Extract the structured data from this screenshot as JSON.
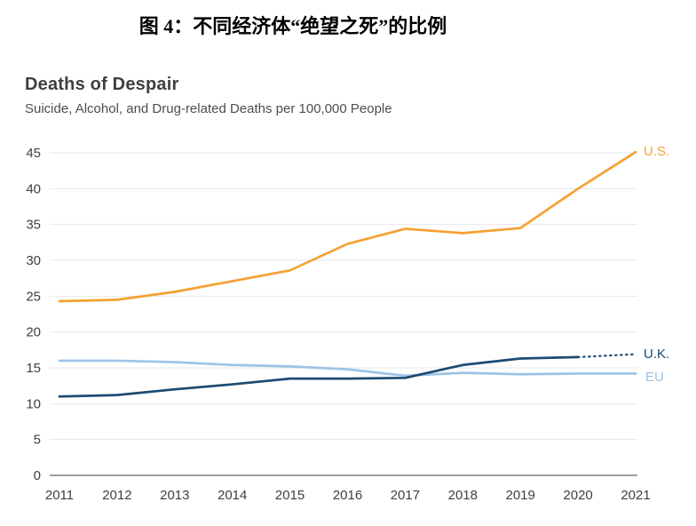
{
  "caption": "图 4：不同经济体“绝望之死”的比例",
  "chart": {
    "title": "Deaths of Despair",
    "subtitle": "Suicide, Alcohol, and Drug-related Deaths per 100,000 People"
  },
  "colors": {
    "us": "#F5A133",
    "uk": "#1B4B73",
    "eu": "#9DC3E6",
    "grid": "#E4E7EA",
    "axis": "#9AA0A6",
    "text": "#3C4043"
  },
  "chart_data": {
    "type": "line",
    "title": "Deaths of Despair",
    "subtitle": "Suicide, Alcohol, and Drug-related Deaths per 100,000 People",
    "x": [
      2011,
      2012,
      2013,
      2014,
      2015,
      2016,
      2017,
      2018,
      2019,
      2020,
      2021
    ],
    "series": [
      {
        "name": "EU",
        "color": "#9DC3E6",
        "values": [
          16.0,
          16.0,
          15.8,
          15.4,
          15.2,
          14.8,
          13.9,
          14.3,
          14.1,
          14.2,
          14.2
        ]
      },
      {
        "name": "U.K.",
        "color": "#1B4B73",
        "values": [
          11.0,
          11.2,
          12.0,
          12.7,
          13.5,
          13.5,
          13.6,
          15.4,
          16.3,
          16.5,
          16.9
        ],
        "dashed_from": 9
      },
      {
        "name": "U.S.",
        "color": "#F5A133",
        "values": [
          24.3,
          24.5,
          25.6,
          27.1,
          28.6,
          32.3,
          34.4,
          33.8,
          34.5,
          40.0,
          45.1
        ]
      }
    ],
    "ylim": [
      0,
      45
    ],
    "yticks": [
      0,
      5,
      10,
      15,
      20,
      25,
      30,
      35,
      40,
      45
    ],
    "xlabel": "",
    "ylabel": "",
    "grid": true,
    "legend_position": "right-end-labels"
  },
  "labels": {
    "us": "U.S.",
    "uk": "U.K.",
    "eu": "EU"
  }
}
